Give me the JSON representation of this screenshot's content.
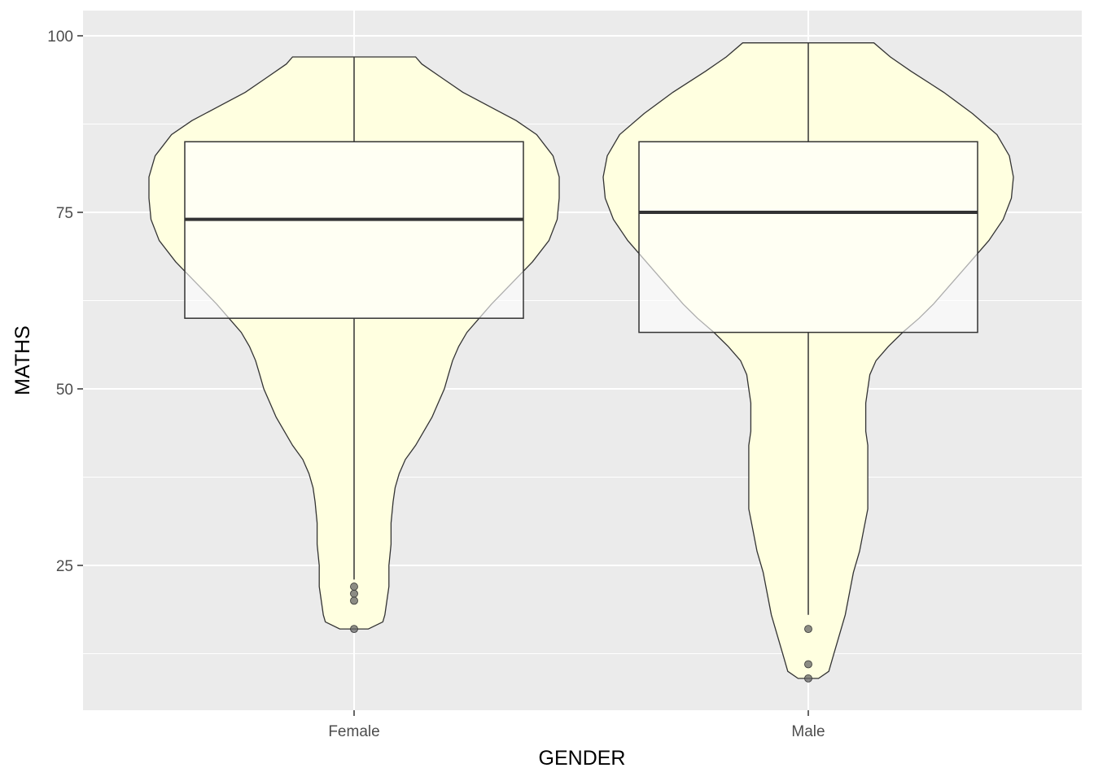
{
  "chart_data": {
    "type": "violin",
    "xlabel": "GENDER",
    "ylabel": "MATHS",
    "categories": [
      "Female",
      "Male"
    ],
    "ylim": [
      5,
      102
    ],
    "y_ticks": [
      25,
      50,
      75,
      100
    ],
    "grid": true,
    "colors": {
      "panel": "#ebebeb",
      "grid": "#ffffff",
      "violin_fill": "#ffffe0",
      "outline": "#333333",
      "outlier": "#666666"
    },
    "boxplots": [
      {
        "category": "Female",
        "q1": 60,
        "median": 74,
        "q3": 85,
        "whisker_low": 23,
        "whisker_high": 97,
        "outliers": [
          22,
          21,
          20,
          16
        ]
      },
      {
        "category": "Male",
        "q1": 58,
        "median": 75,
        "q3": 85,
        "whisker_low": 18,
        "whisker_high": 99,
        "outliers": [
          16,
          11,
          9
        ]
      }
    ],
    "violins": [
      {
        "category": "Female",
        "density": [
          [
            16,
            0.07
          ],
          [
            17,
            0.14
          ],
          [
            18,
            0.15
          ],
          [
            20,
            0.16
          ],
          [
            22,
            0.17
          ],
          [
            25,
            0.17
          ],
          [
            28,
            0.18
          ],
          [
            31,
            0.18
          ],
          [
            34,
            0.19
          ],
          [
            36,
            0.2
          ],
          [
            38,
            0.22
          ],
          [
            40,
            0.25
          ],
          [
            42,
            0.3
          ],
          [
            44,
            0.34
          ],
          [
            46,
            0.38
          ],
          [
            48,
            0.41
          ],
          [
            50,
            0.44
          ],
          [
            52,
            0.46
          ],
          [
            54,
            0.48
          ],
          [
            56,
            0.51
          ],
          [
            58,
            0.55
          ],
          [
            60,
            0.61
          ],
          [
            62,
            0.67
          ],
          [
            65,
            0.77
          ],
          [
            68,
            0.87
          ],
          [
            71,
            0.95
          ],
          [
            74,
            0.99
          ],
          [
            77,
            1.0
          ],
          [
            80,
            1.0
          ],
          [
            83,
            0.97
          ],
          [
            86,
            0.89
          ],
          [
            88,
            0.79
          ],
          [
            90,
            0.66
          ],
          [
            92,
            0.53
          ],
          [
            94,
            0.43
          ],
          [
            96,
            0.33
          ],
          [
            97,
            0.3
          ]
        ]
      },
      {
        "category": "Male",
        "density": [
          [
            9,
            0.05
          ],
          [
            10,
            0.1
          ],
          [
            12,
            0.12
          ],
          [
            15,
            0.15
          ],
          [
            18,
            0.18
          ],
          [
            21,
            0.2
          ],
          [
            24,
            0.22
          ],
          [
            27,
            0.25
          ],
          [
            30,
            0.27
          ],
          [
            33,
            0.29
          ],
          [
            36,
            0.29
          ],
          [
            38,
            0.29
          ],
          [
            40,
            0.29
          ],
          [
            42,
            0.29
          ],
          [
            44,
            0.28
          ],
          [
            46,
            0.28
          ],
          [
            48,
            0.28
          ],
          [
            50,
            0.29
          ],
          [
            52,
            0.3
          ],
          [
            54,
            0.33
          ],
          [
            56,
            0.39
          ],
          [
            58,
            0.46
          ],
          [
            60,
            0.54
          ],
          [
            62,
            0.61
          ],
          [
            65,
            0.7
          ],
          [
            68,
            0.79
          ],
          [
            71,
            0.88
          ],
          [
            74,
            0.95
          ],
          [
            77,
            0.99
          ],
          [
            80,
            1.0
          ],
          [
            83,
            0.98
          ],
          [
            86,
            0.92
          ],
          [
            89,
            0.8
          ],
          [
            92,
            0.66
          ],
          [
            95,
            0.5
          ],
          [
            97,
            0.4
          ],
          [
            99,
            0.32
          ]
        ]
      }
    ]
  }
}
